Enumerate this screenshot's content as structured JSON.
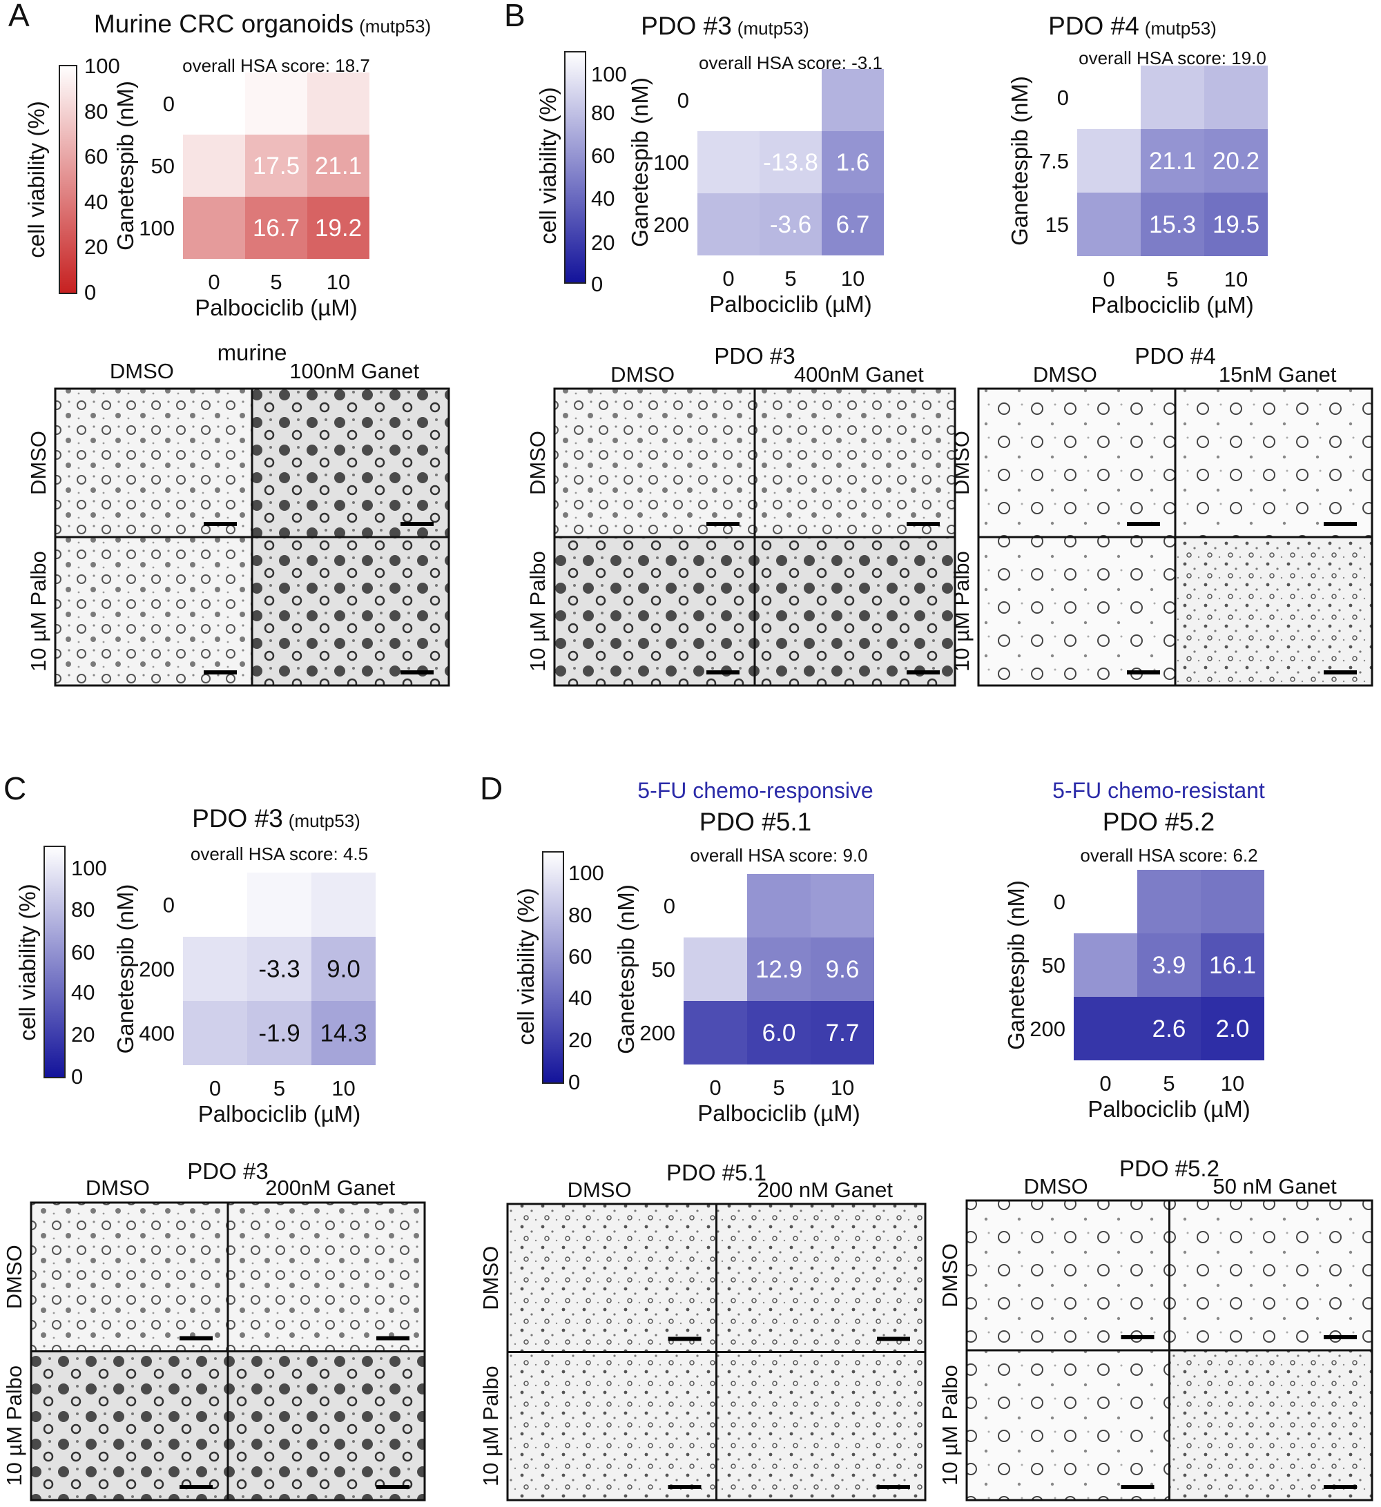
{
  "panel_labels": [
    "A",
    "B",
    "C",
    "D"
  ],
  "colorbar": {
    "label": "cell viability (%)",
    "ticks_A": [
      "100",
      "80",
      "60",
      "40",
      "20",
      "0"
    ],
    "ticks_BCD": [
      "100",
      "80",
      "60",
      "40",
      "20",
      "0"
    ]
  },
  "axis": {
    "xlabel": "Palbociclib (µM)",
    "ylabel": "Ganetespib (nM)"
  },
  "colors": {
    "red_low": "#c62020",
    "red_high": "#ffffff",
    "blue_low": "#12129a",
    "blue_high": "#ffffff",
    "section_blue": "#2a2aa8"
  },
  "chart_data": [
    {
      "id": "A",
      "type": "heatmap",
      "colormap": "red",
      "title": "Murine CRC organoids",
      "subtitle": "(mutp53)",
      "hsa_text": "overall HSA score: 18.7",
      "x_ticks": [
        "0",
        "5",
        "10"
      ],
      "y_ticks": [
        "0",
        "50",
        "100"
      ],
      "viability": [
        [
          100,
          96,
          88
        ],
        [
          88,
          70,
          60
        ],
        [
          55,
          40,
          30
        ]
      ],
      "scores": [
        [
          "",
          "",
          ""
        ],
        [
          "",
          "17.5",
          "21.1"
        ],
        [
          "",
          "16.7",
          "19.2"
        ]
      ]
    },
    {
      "id": "B1",
      "type": "heatmap",
      "colormap": "blue",
      "title": "PDO #3",
      "subtitle": "(mutp53)",
      "hsa_text": "overall HSA score: -3.1",
      "x_ticks": [
        "0",
        "5",
        "10"
      ],
      "y_ticks": [
        "0",
        "100",
        "200"
      ],
      "viability": [
        [
          100,
          100,
          68
        ],
        [
          85,
          82,
          55
        ],
        [
          72,
          70,
          50
        ]
      ],
      "scores": [
        [
          "",
          "",
          ""
        ],
        [
          "",
          "-13.8",
          "1.6"
        ],
        [
          "",
          "-3.6",
          "6.7"
        ]
      ]
    },
    {
      "id": "B2",
      "type": "heatmap",
      "colormap": "blue",
      "title": "PDO #4",
      "subtitle": "(mutp53)",
      "hsa_text": "overall HSA score: 19.0",
      "x_ticks": [
        "0",
        "5",
        "10"
      ],
      "y_ticks": [
        "0",
        "7.5",
        "15"
      ],
      "viability": [
        [
          100,
          78,
          72
        ],
        [
          82,
          55,
          52
        ],
        [
          60,
          45,
          40
        ]
      ],
      "scores": [
        [
          "",
          "",
          ""
        ],
        [
          "",
          "21.1",
          "20.2"
        ],
        [
          "",
          "15.3",
          "19.5"
        ]
      ]
    },
    {
      "id": "C",
      "type": "heatmap",
      "colormap": "blue",
      "title": "PDO #3",
      "subtitle": "(mutp53)",
      "hsa_text": "overall HSA score: 4.5",
      "x_ticks": [
        "0",
        "5",
        "10"
      ],
      "y_ticks": [
        "0",
        "200",
        "400"
      ],
      "viability": [
        [
          100,
          96,
          92
        ],
        [
          88,
          85,
          72
        ],
        [
          80,
          76,
          62
        ]
      ],
      "scores": [
        [
          "",
          "",
          ""
        ],
        [
          "",
          "-3.3",
          "9.0"
        ],
        [
          "",
          "-1.9",
          "14.3"
        ]
      ],
      "dark_text": true
    },
    {
      "id": "D1",
      "type": "heatmap",
      "colormap": "blue",
      "title": "PDO #5.1",
      "section": "5-FU chemo-responsive",
      "hsa_text": "overall HSA score: 9.0",
      "x_ticks": [
        "0",
        "5",
        "10"
      ],
      "y_ticks": [
        "0",
        "50",
        "200"
      ],
      "viability": [
        [
          100,
          55,
          58
        ],
        [
          80,
          48,
          45
        ],
        [
          25,
          20,
          18
        ]
      ],
      "scores": [
        [
          "",
          "",
          ""
        ],
        [
          "",
          "12.9",
          "9.6"
        ],
        [
          "",
          "6.0",
          "7.7"
        ]
      ]
    },
    {
      "id": "D2",
      "type": "heatmap",
      "colormap": "blue",
      "title": "PDO #5.2",
      "section": "5-FU chemo-resistant",
      "hsa_text": "overall HSA score: 6.2",
      "x_ticks": [
        "0",
        "5",
        "10"
      ],
      "y_ticks": [
        "0",
        "50",
        "200"
      ],
      "viability": [
        [
          100,
          45,
          42
        ],
        [
          55,
          40,
          28
        ],
        [
          15,
          15,
          12
        ]
      ],
      "scores": [
        [
          "",
          "",
          ""
        ],
        [
          "",
          "3.9",
          "16.1"
        ],
        [
          "",
          "2.6",
          "2.0"
        ]
      ]
    }
  ],
  "micrographs": [
    {
      "id": "A",
      "title": "murine",
      "col_labels": [
        "DMSO",
        "100nM Ganet"
      ],
      "row_labels": [
        "DMSO",
        "10 µM Palbo"
      ]
    },
    {
      "id": "B1",
      "title": "PDO #3",
      "col_labels": [
        "DMSO",
        "400nM Ganet"
      ],
      "row_labels": [
        "DMSO",
        "10 µM Palbo"
      ]
    },
    {
      "id": "B2",
      "title": "PDO #4",
      "col_labels": [
        "DMSO",
        "15nM Ganet"
      ],
      "row_labels": [
        "DMSO",
        "10 µM Palbo"
      ]
    },
    {
      "id": "C",
      "title": "PDO #3",
      "col_labels": [
        "DMSO",
        "200nM Ganet"
      ],
      "row_labels": [
        "DMSO",
        "10 µM Palbo"
      ]
    },
    {
      "id": "D1",
      "title": "PDO #5.1",
      "col_labels": [
        "DMSO",
        "200 nM Ganet"
      ],
      "row_labels": [
        "DMSO",
        "10 µM Palbo"
      ]
    },
    {
      "id": "D2",
      "title": "PDO #5.2",
      "col_labels": [
        "DMSO",
        "50 nM Ganet"
      ],
      "row_labels": [
        "DMSO",
        "10 µM Palbo"
      ]
    }
  ]
}
